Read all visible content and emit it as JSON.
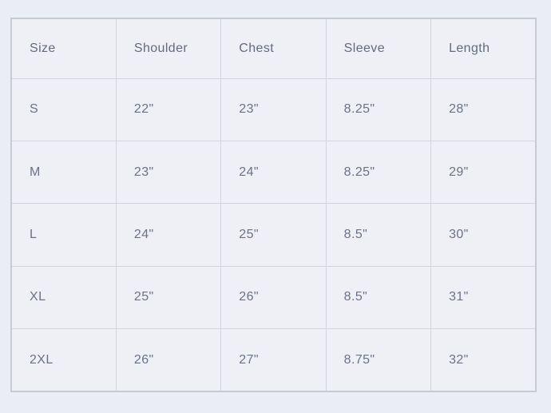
{
  "table": {
    "headers": [
      "Size",
      "Shoulder",
      "Chest",
      "Sleeve",
      "Length"
    ],
    "rows": [
      {
        "size": "S",
        "shoulder": "22\"",
        "chest": "23\"",
        "sleeve": "8.25\"",
        "length": "28\""
      },
      {
        "size": "M",
        "shoulder": "23\"",
        "chest": "24\"",
        "sleeve": "8.25\"",
        "length": "29\""
      },
      {
        "size": "L",
        "shoulder": "24\"",
        "chest": "25\"",
        "sleeve": "8.5\"",
        "length": "30\""
      },
      {
        "size": "XL",
        "shoulder": "25\"",
        "chest": "26\"",
        "sleeve": "8.5\"",
        "length": "31\""
      },
      {
        "size": "2XL",
        "shoulder": "26\"",
        "chest": "27\"",
        "sleeve": "8.75\"",
        "length": "32\""
      }
    ]
  },
  "colors": {
    "page_background": "#ebedf4",
    "cell_background": "#eef0f6",
    "outer_border": "#c7c9d3",
    "inner_border": "#d2d4dd",
    "text": "#6b7285"
  }
}
